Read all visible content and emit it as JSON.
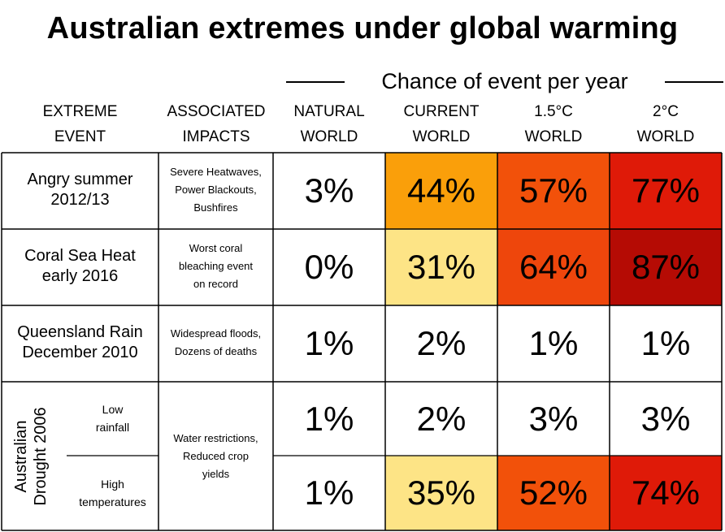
{
  "title": "Australian extremes under global warming",
  "span_label": "Chance of event per year",
  "columns": [
    {
      "line1": "EXTREME",
      "line2": "EVENT"
    },
    {
      "line1": "ASSOCIATED",
      "line2": "IMPACTS"
    },
    {
      "line1": "NATURAL",
      "line2": "WORLD"
    },
    {
      "line1": "CURRENT",
      "line2": "WORLD"
    },
    {
      "line1": "1.5°C",
      "line2": "WORLD"
    },
    {
      "line1": "2°C",
      "line2": "WORLD"
    }
  ],
  "rows": [
    {
      "event_l1": "Angry summer",
      "event_l2": "2012/13",
      "impact": [
        "Severe Heatwaves,",
        "Power Blackouts,",
        "Bushfires"
      ]
    },
    {
      "event_l1": "Coral Sea Heat",
      "event_l2": "early 2016",
      "impact": [
        "Worst coral",
        "bleaching event",
        "on record"
      ]
    },
    {
      "event_l1": "Queensland Rain",
      "event_l2": "December 2010",
      "impact": [
        "Widespread floods,",
        "Dozens of deaths"
      ]
    }
  ],
  "drought": {
    "label_l1": "Australian",
    "label_l2": "Drought 2006",
    "sub1": [
      "Low",
      "rainfall"
    ],
    "sub2": [
      "High",
      "temperatures"
    ],
    "impact": [
      "Water restrictions,",
      "Reduced crop",
      "yields"
    ]
  },
  "chart_data": {
    "type": "table",
    "title": "Australian extremes under global warming",
    "value_header": "Chance of event per year",
    "columns": [
      "NATURAL WORLD",
      "CURRENT WORLD",
      "1.5°C WORLD",
      "2°C WORLD"
    ],
    "rows": [
      "Angry summer 2012/13",
      "Coral Sea Heat early 2016",
      "Queensland Rain December 2010",
      "Australian Drought 2006 — Low rainfall",
      "Australian Drought 2006 — High temperatures"
    ],
    "values": [
      [
        "3%",
        "44%",
        "57%",
        "77%"
      ],
      [
        "0%",
        "31%",
        "64%",
        "87%"
      ],
      [
        "1%",
        "2%",
        "1%",
        "1%"
      ],
      [
        "1%",
        "2%",
        "3%",
        "3%"
      ],
      [
        "1%",
        "35%",
        "52%",
        "74%"
      ]
    ],
    "cell_colors": [
      [
        "#ffffff",
        "#fa9f0a",
        "#f2510a",
        "#df1a08"
      ],
      [
        "#ffffff",
        "#fde486",
        "#ee460c",
        "#b50b04"
      ],
      [
        "#ffffff",
        "#ffffff",
        "#ffffff",
        "#ffffff"
      ],
      [
        "#ffffff",
        "#ffffff",
        "#ffffff",
        "#ffffff"
      ],
      [
        "#ffffff",
        "#fde486",
        "#f2510a",
        "#df1a08"
      ]
    ]
  }
}
